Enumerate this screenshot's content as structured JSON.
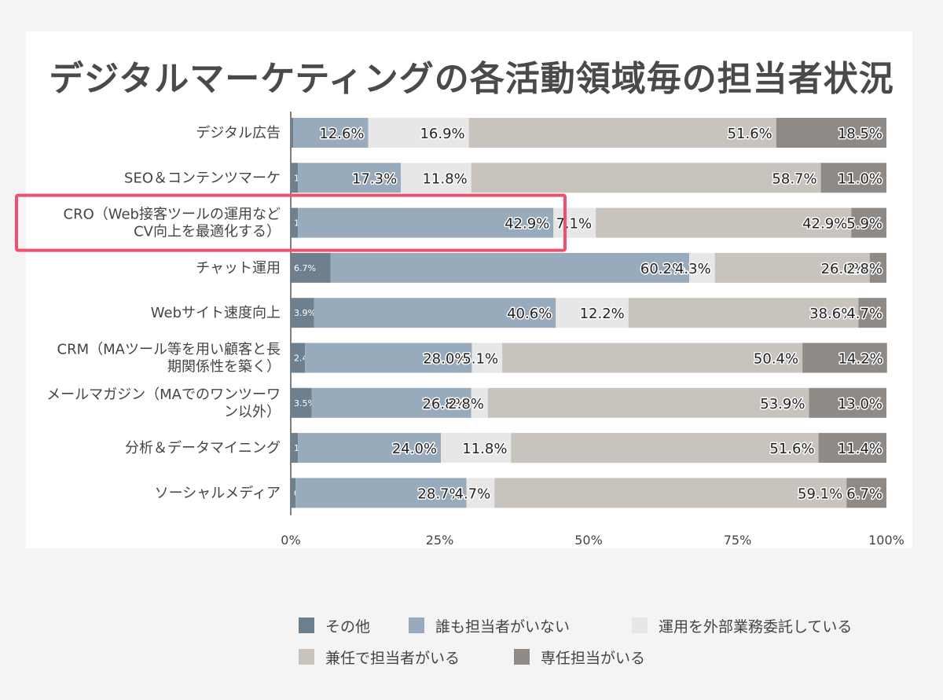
{
  "chart_data": {
    "type": "bar",
    "orientation": "horizontal",
    "stacked": true,
    "title": "デジタルマーケティングの各活動領域毎の担当者状況",
    "categories": [
      "デジタル広告",
      "SEO＆コンテンツマーケ",
      "CRO（Web接客ツールの運用など\nCV向上を最適化する）",
      "チャット運用",
      "Webサイト速度向上",
      "CRM（MAツール等を用い顧客と長\n期関係性を築く）",
      "メールマガジン（MAでのワンツーワ\nン以外）",
      "分析＆データマイニング",
      "ソーシャルメディア"
    ],
    "series": [
      {
        "name": "その他",
        "color": "#6e7f8d",
        "values": [
          0.4,
          1.2,
          1.2,
          6.7,
          3.9,
          2.4,
          3.5,
          1.2,
          0.8
        ]
      },
      {
        "name": "誰も担当者がいない",
        "color": "#98abbc",
        "values": [
          12.6,
          17.3,
          42.9,
          60.2,
          40.6,
          28.0,
          26.8,
          24.0,
          28.7
        ]
      },
      {
        "name": "運用を外部業務委託している",
        "color": "#e7e7e7",
        "values": [
          16.9,
          11.8,
          7.1,
          4.3,
          12.2,
          5.1,
          2.8,
          11.8,
          4.7
        ]
      },
      {
        "name": "兼任で担当者がいる",
        "color": "#c8c3bd",
        "values": [
          51.6,
          58.7,
          42.9,
          26.0,
          38.6,
          50.4,
          53.9,
          51.6,
          59.1
        ]
      },
      {
        "name": "専任担当がいる",
        "color": "#8f8a85",
        "values": [
          18.5,
          11.0,
          5.9,
          2.8,
          4.7,
          14.2,
          13.0,
          11.4,
          6.7
        ]
      }
    ],
    "xlim": [
      0,
      100
    ],
    "x_ticks": [
      "0%",
      "25%",
      "50%",
      "75%",
      "100%"
    ],
    "value_suffix": "%",
    "legend_position": "bottom",
    "highlight": {
      "category_index": 2,
      "color": "#f0506e"
    }
  }
}
